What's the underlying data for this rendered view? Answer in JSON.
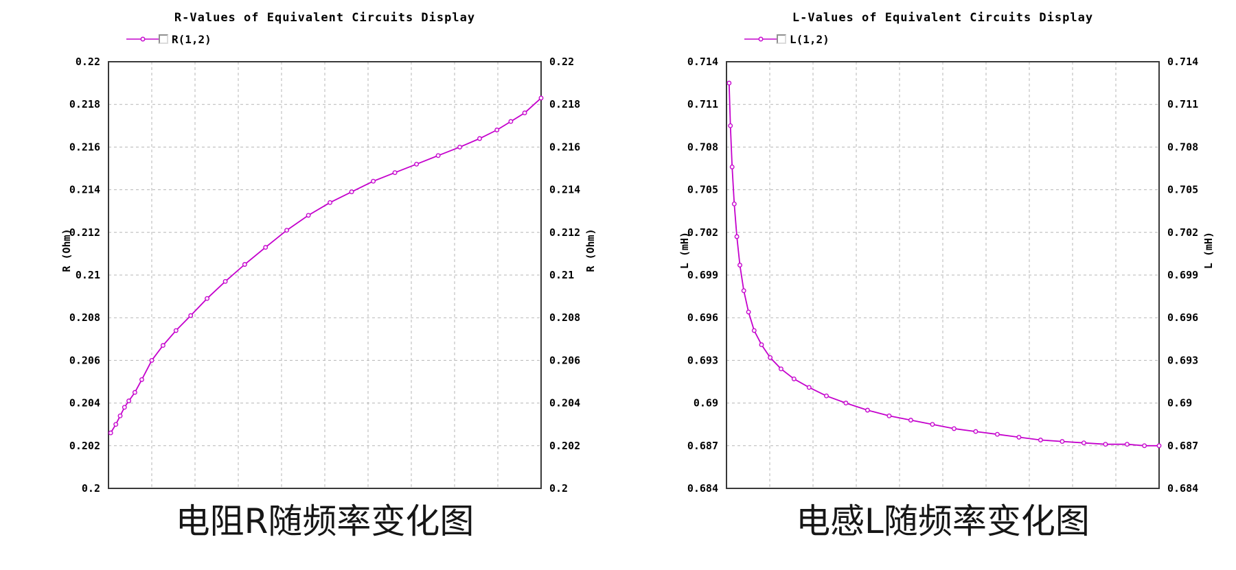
{
  "page": {
    "background": "#ffffff",
    "accent_color": "#c400cc",
    "grid_color": "#b5b5b5",
    "frame_color": "#383838",
    "text_color": "#000000"
  },
  "chart_data": [
    {
      "type": "line",
      "title": "R-Values of Equivalent Circuits Display",
      "legend": [
        "R(1,2)"
      ],
      "legend_position": "top-left",
      "legend_checkbox_checked": false,
      "ylabel": "R (Ohm)",
      "ylabel_right": "R (Ohm)",
      "xlabel": "",
      "x_tick_labels": [],
      "ylim": [
        0.2,
        0.22
      ],
      "y_ticks": [
        0.22,
        0.218,
        0.216,
        0.214,
        0.212,
        0.21,
        0.208,
        0.206,
        0.204,
        0.202,
        0.2
      ],
      "y_tick_labels": [
        "0.22",
        "0.218",
        "0.216",
        "0.214",
        "0.212",
        "0.21",
        "0.208",
        "0.206",
        "0.204",
        "0.202",
        "0.2"
      ],
      "grid": true,
      "caption": "电阻R随频率变化图",
      "series": [
        {
          "name": "R(1,2)",
          "color": "#c400cc",
          "x_frac": [
            0.005,
            0.017,
            0.027,
            0.037,
            0.047,
            0.061,
            0.077,
            0.1,
            0.126,
            0.156,
            0.19,
            0.228,
            0.27,
            0.315,
            0.363,
            0.412,
            0.462,
            0.512,
            0.562,
            0.612,
            0.662,
            0.712,
            0.762,
            0.812,
            0.858,
            0.898,
            0.93,
            0.962,
            1.0
          ],
          "values": [
            0.2026,
            0.203,
            0.2034,
            0.2038,
            0.2041,
            0.2045,
            0.2051,
            0.206,
            0.2067,
            0.2074,
            0.2081,
            0.2089,
            0.2097,
            0.2105,
            0.2113,
            0.2121,
            0.2128,
            0.2134,
            0.2139,
            0.2144,
            0.2148,
            0.2152,
            0.2156,
            0.216,
            0.2164,
            0.2168,
            0.2172,
            0.2176,
            0.2183
          ]
        }
      ]
    },
    {
      "type": "line",
      "title": "L-Values of Equivalent Circuits Display",
      "legend": [
        "L(1,2)"
      ],
      "legend_position": "top-left",
      "legend_checkbox_checked": false,
      "ylabel": "L (mH)",
      "ylabel_right": "L (mH)",
      "xlabel": "",
      "x_tick_labels": [],
      "ylim": [
        0.684,
        0.714
      ],
      "y_ticks": [
        0.714,
        0.711,
        0.708,
        0.705,
        0.702,
        0.699,
        0.696,
        0.693,
        0.69,
        0.687,
        0.684
      ],
      "y_tick_labels": [
        "0.714",
        "0.711",
        "0.708",
        "0.705",
        "0.702",
        "0.699",
        "0.696",
        "0.693",
        "0.69",
        "0.687",
        "0.684"
      ],
      "grid": true,
      "caption": "电感L随频率变化图",
      "series": [
        {
          "name": "L(1,2)",
          "color": "#c400cc",
          "x_frac": [
            0.006,
            0.009,
            0.013,
            0.018,
            0.024,
            0.031,
            0.04,
            0.051,
            0.064,
            0.081,
            0.101,
            0.126,
            0.156,
            0.191,
            0.231,
            0.276,
            0.326,
            0.376,
            0.426,
            0.476,
            0.526,
            0.576,
            0.626,
            0.676,
            0.726,
            0.776,
            0.826,
            0.876,
            0.926,
            0.966,
            1.0
          ],
          "values": [
            0.7125,
            0.7095,
            0.7066,
            0.704,
            0.7017,
            0.6997,
            0.6979,
            0.6964,
            0.6951,
            0.6941,
            0.6932,
            0.6924,
            0.6917,
            0.6911,
            0.6905,
            0.69,
            0.6895,
            0.6891,
            0.6888,
            0.6885,
            0.6882,
            0.688,
            0.6878,
            0.6876,
            0.6874,
            0.6873,
            0.6872,
            0.6871,
            0.6871,
            0.687,
            0.687
          ]
        }
      ]
    }
  ]
}
